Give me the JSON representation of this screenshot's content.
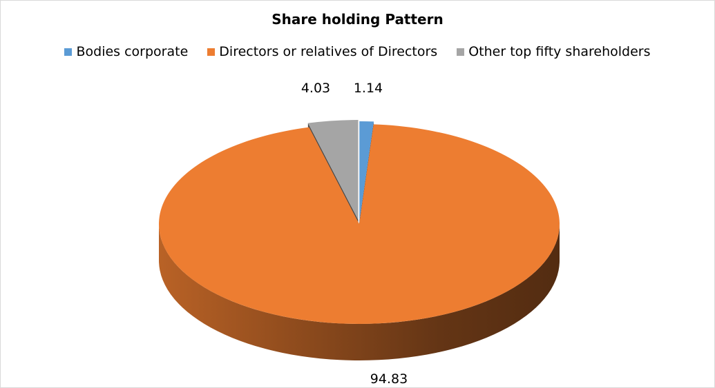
{
  "chart_data": {
    "type": "pie",
    "style": "3d-exploded",
    "title": "Share holding Pattern",
    "legend_position": "top",
    "slices": [
      {
        "name": "Bodies corporate",
        "value": 1.14,
        "label": "1.14",
        "color": "#5b9bd5"
      },
      {
        "name": "Directors or relatives of Directors",
        "value": 94.83,
        "label": "94.83",
        "color": "#ed7d31"
      },
      {
        "name": "Other top fifty shareholders",
        "value": 4.03,
        "label": "4.03",
        "color": "#a5a5a5"
      }
    ]
  }
}
